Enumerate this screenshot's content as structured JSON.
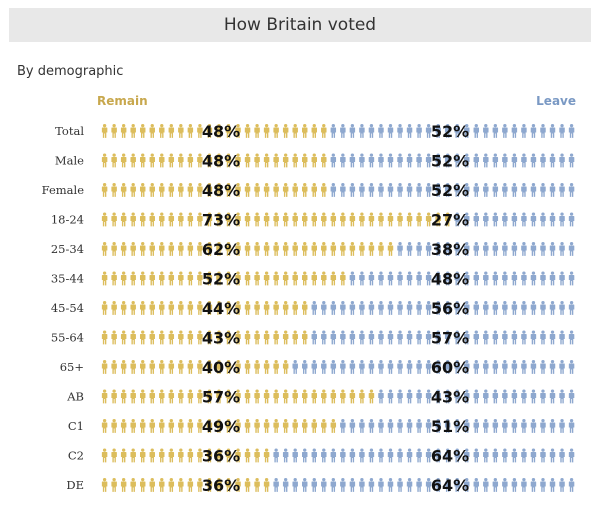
{
  "title": "How Britain voted",
  "subtitle": "By demographic",
  "legend": {
    "remain": "Remain",
    "leave": "Leave"
  },
  "colors": {
    "remain": "#dcbd5c",
    "leave": "#8ea8cf",
    "remain_text": "#c8a84e",
    "leave_text": "#7a99c4"
  },
  "chart_data": {
    "type": "bar",
    "stacked": true,
    "orientation": "horizontal",
    "categories": [
      "Total",
      "Male",
      "Female",
      "18-24",
      "25-34",
      "35-44",
      "45-54",
      "55-64",
      "65+",
      "AB",
      "C1",
      "C2",
      "DE"
    ],
    "series": [
      {
        "name": "Remain",
        "values": [
          48,
          48,
          48,
          73,
          62,
          52,
          44,
          43,
          40,
          57,
          49,
          36,
          36
        ]
      },
      {
        "name": "Leave",
        "values": [
          52,
          52,
          52,
          27,
          38,
          48,
          56,
          57,
          60,
          43,
          51,
          64,
          64
        ]
      }
    ],
    "title": "How Britain voted",
    "subtitle": "By demographic",
    "legend_position": "top",
    "value_suffix": "%"
  }
}
